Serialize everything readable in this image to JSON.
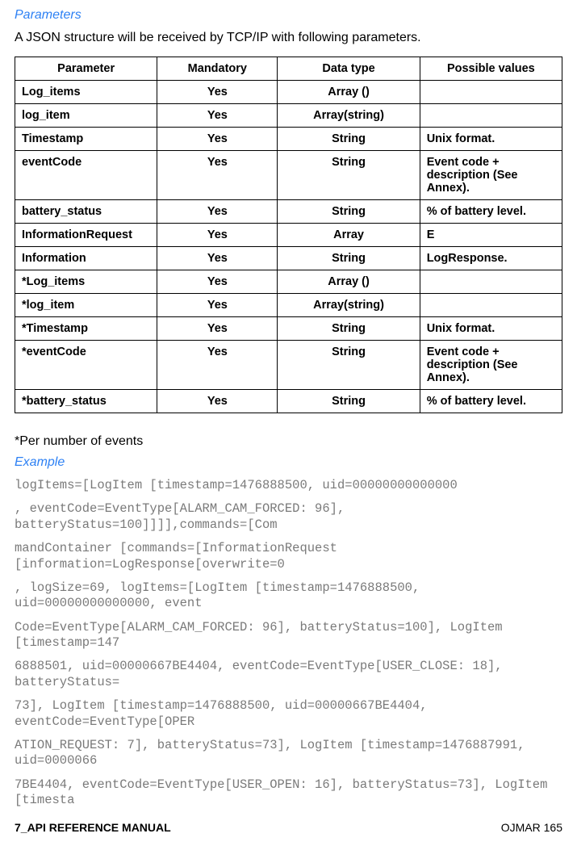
{
  "section": {
    "parameters_title": "Parameters",
    "intro": "A JSON structure will be received by TCP/IP with following parameters.",
    "note": "*Per number of events",
    "example_title": "Example"
  },
  "table": {
    "headers": [
      "Parameter",
      "Mandatory",
      "Data type",
      "Possible values"
    ],
    "rows": [
      [
        "Log_items",
        "Yes",
        "Array ()",
        ""
      ],
      [
        "log_item",
        "Yes",
        "Array(string)",
        ""
      ],
      [
        "Timestamp",
        "Yes",
        "String",
        "Unix format."
      ],
      [
        "eventCode",
        "Yes",
        "String",
        "Event code + description (See Annex)."
      ],
      [
        "battery_status",
        "Yes",
        "String",
        "% of battery level."
      ],
      [
        "InformationRequest",
        "Yes",
        "Array",
        "E"
      ],
      [
        "Information",
        "Yes",
        "String",
        "LogResponse."
      ],
      [
        "*Log_items",
        "Yes",
        "Array ()",
        ""
      ],
      [
        "*log_item",
        "Yes",
        "Array(string)",
        ""
      ],
      [
        "*Timestamp",
        "Yes",
        "String",
        "Unix format."
      ],
      [
        "*eventCode",
        "Yes",
        "String",
        "Event code + description (See Annex)."
      ],
      [
        "*battery_status",
        "Yes",
        "String",
        "% of battery level."
      ]
    ]
  },
  "example_lines": [
    "logItems=[LogItem [timestamp=1476888500, uid=00000000000000",
    ", eventCode=EventType[ALARM_CAM_FORCED: 96], batteryStatus=100]]]],commands=[Com",
    "mandContainer [commands=[InformationRequest [information=LogResponse[overwrite=0",
    ", logSize=69, logItems=[LogItem [timestamp=1476888500, uid=00000000000000, event",
    "Code=EventType[ALARM_CAM_FORCED: 96], batteryStatus=100], LogItem [timestamp=147",
    "6888501, uid=00000667BE4404, eventCode=EventType[USER_CLOSE: 18], batteryStatus=",
    "73], LogItem [timestamp=1476888500, uid=00000667BE4404, eventCode=EventType[OPER",
    "ATION_REQUEST: 7], batteryStatus=73], LogItem [timestamp=1476887991, uid=0000066",
    "7BE4404, eventCode=EventType[USER_OPEN: 16], batteryStatus=73], LogItem [timesta"
  ],
  "footer": {
    "left": "7_API REFERENCE MANUAL",
    "right": "OJMAR 165"
  }
}
